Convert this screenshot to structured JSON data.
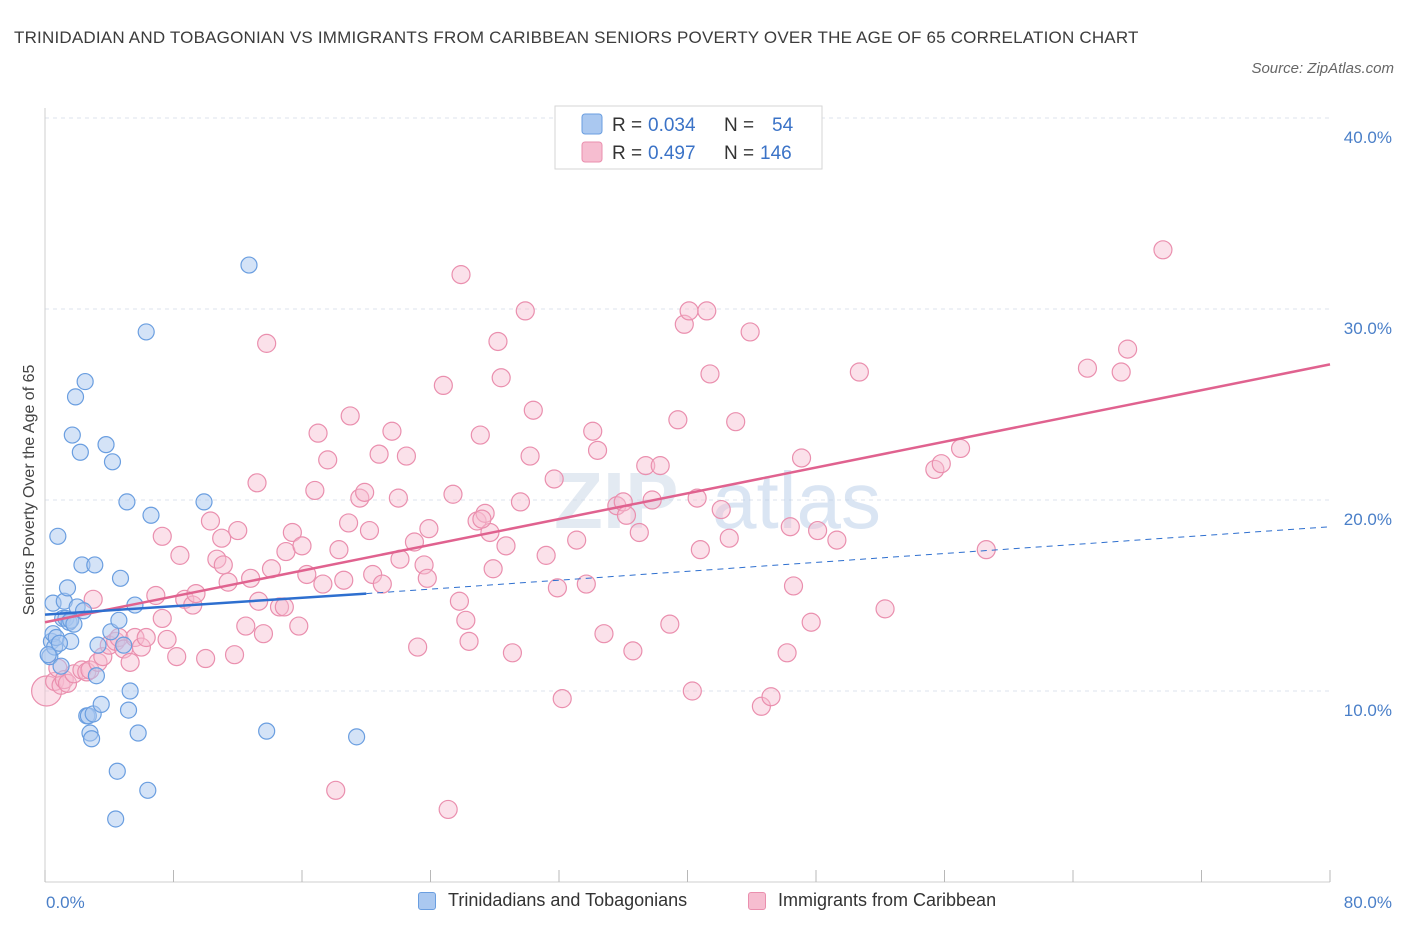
{
  "header": {
    "title": "TRINIDADIAN AND TOBAGONIAN VS IMMIGRANTS FROM CARIBBEAN SENIORS POVERTY OVER THE AGE OF 65 CORRELATION CHART",
    "source": "Source: ZipAtlas.com"
  },
  "watermark": {
    "zip": "ZIP",
    "atlas": "atlas"
  },
  "legend": {
    "items": [
      {
        "r_label": "R =",
        "r_value": "0.034",
        "n_label": "N =",
        "n_value": "54"
      },
      {
        "r_label": "R =",
        "r_value": "0.497",
        "n_label": "N =",
        "n_value": "146"
      }
    ]
  },
  "bottom_legend": {
    "series1": "Trinidadians and Tobagonians",
    "series2": "Immigrants from Caribbean"
  },
  "colors": {
    "blue_fill": "#aac8f0",
    "blue_stroke": "#6a9ee0",
    "blue_line": "#2e6fcf",
    "pink_fill": "#f6bdd0",
    "pink_stroke": "#ea8fae",
    "pink_line": "#e0628f",
    "grid": "#dde3ec",
    "tick_text": "#4a7fc8"
  },
  "chart_data": {
    "type": "scatter",
    "title": "TRINIDADIAN AND TOBAGONIAN VS IMMIGRANTS FROM CARIBBEAN SENIORS POVERTY OVER THE AGE OF 65 CORRELATION CHART",
    "xlabel": "",
    "ylabel": "Seniors Poverty Over the Age of 65",
    "xlim": [
      0,
      80
    ],
    "ylim": [
      0,
      40
    ],
    "x_tick_labels": [
      "0.0%",
      "80.0%"
    ],
    "y_ticks": [
      10,
      20,
      30,
      40
    ],
    "y_tick_labels": [
      "10.0%",
      "20.0%",
      "30.0%",
      "40.0%"
    ],
    "grid": true,
    "legend_position": "top-center",
    "series": [
      {
        "name": "Trinidadians and Tobagonians",
        "r": 0.034,
        "n": 54,
        "trend_solid": [
          [
            0,
            14.0
          ],
          [
            20,
            15.1
          ]
        ],
        "trend_dashed": [
          [
            20,
            15.1
          ],
          [
            80,
            18.6
          ]
        ],
        "points": [
          [
            0.3,
            11.8
          ],
          [
            0.4,
            12.6
          ],
          [
            0.5,
            13.0
          ],
          [
            0.5,
            14.6
          ],
          [
            0.6,
            12.3
          ],
          [
            0.7,
            12.8
          ],
          [
            0.8,
            18.1
          ],
          [
            1.0,
            11.3
          ],
          [
            1.1,
            13.8
          ],
          [
            1.2,
            14.7
          ],
          [
            1.3,
            13.8
          ],
          [
            1.4,
            15.4
          ],
          [
            1.5,
            13.6
          ],
          [
            1.6,
            12.6
          ],
          [
            1.6,
            13.7
          ],
          [
            1.7,
            23.4
          ],
          [
            1.9,
            25.4
          ],
          [
            2.0,
            14.4
          ],
          [
            2.2,
            22.5
          ],
          [
            2.3,
            16.6
          ],
          [
            2.5,
            26.2
          ],
          [
            2.6,
            8.7
          ],
          [
            2.7,
            8.7
          ],
          [
            2.8,
            7.8
          ],
          [
            2.9,
            7.5
          ],
          [
            3.0,
            8.8
          ],
          [
            3.1,
            16.6
          ],
          [
            3.2,
            10.8
          ],
          [
            3.3,
            12.4
          ],
          [
            3.5,
            9.3
          ],
          [
            3.8,
            22.9
          ],
          [
            4.1,
            13.1
          ],
          [
            4.2,
            22.0
          ],
          [
            4.4,
            3.3
          ],
          [
            4.5,
            5.8
          ],
          [
            4.6,
            13.7
          ],
          [
            4.7,
            15.9
          ],
          [
            4.9,
            12.4
          ],
          [
            5.1,
            19.9
          ],
          [
            5.2,
            9.0
          ],
          [
            5.3,
            10.0
          ],
          [
            5.6,
            14.5
          ],
          [
            5.8,
            7.8
          ],
          [
            6.3,
            28.8
          ],
          [
            6.4,
            4.8
          ],
          [
            6.6,
            19.2
          ],
          [
            9.9,
            19.9
          ],
          [
            12.7,
            32.3
          ],
          [
            13.8,
            7.9
          ],
          [
            19.4,
            7.6
          ],
          [
            0.2,
            11.9
          ],
          [
            0.9,
            12.5
          ],
          [
            1.8,
            13.5
          ],
          [
            2.4,
            14.2
          ]
        ]
      },
      {
        "name": "Immigrants from Caribbean",
        "r": 0.497,
        "n": 146,
        "trend_solid": [
          [
            0,
            13.6
          ],
          [
            80,
            27.1
          ]
        ],
        "points": [
          [
            0.1,
            10.0
          ],
          [
            0.6,
            10.5
          ],
          [
            0.8,
            11.2
          ],
          [
            1.0,
            10.3
          ],
          [
            1.2,
            10.6
          ],
          [
            1.4,
            10.4
          ],
          [
            1.8,
            10.9
          ],
          [
            2.3,
            11.1
          ],
          [
            2.6,
            11.0
          ],
          [
            2.8,
            11.1
          ],
          [
            3.0,
            14.8
          ],
          [
            3.3,
            11.5
          ],
          [
            3.6,
            11.8
          ],
          [
            4.0,
            12.4
          ],
          [
            4.4,
            12.6
          ],
          [
            4.6,
            12.8
          ],
          [
            4.9,
            12.2
          ],
          [
            5.3,
            11.5
          ],
          [
            5.6,
            12.8
          ],
          [
            6.0,
            12.3
          ],
          [
            6.3,
            12.8
          ],
          [
            6.9,
            15.0
          ],
          [
            7.3,
            13.8
          ],
          [
            7.3,
            18.1
          ],
          [
            7.6,
            12.7
          ],
          [
            8.2,
            11.8
          ],
          [
            8.4,
            17.1
          ],
          [
            8.7,
            14.8
          ],
          [
            9.2,
            14.5
          ],
          [
            9.4,
            15.1
          ],
          [
            10.0,
            11.7
          ],
          [
            10.3,
            18.9
          ],
          [
            10.7,
            16.9
          ],
          [
            11.0,
            18.0
          ],
          [
            11.1,
            16.6
          ],
          [
            11.4,
            15.7
          ],
          [
            11.8,
            11.9
          ],
          [
            12.0,
            18.4
          ],
          [
            12.5,
            13.4
          ],
          [
            12.8,
            15.9
          ],
          [
            13.2,
            20.9
          ],
          [
            13.3,
            14.7
          ],
          [
            13.6,
            13.0
          ],
          [
            13.8,
            28.2
          ],
          [
            14.1,
            16.4
          ],
          [
            14.6,
            14.4
          ],
          [
            15.0,
            17.3
          ],
          [
            15.4,
            18.3
          ],
          [
            15.8,
            13.4
          ],
          [
            16.0,
            17.6
          ],
          [
            16.3,
            16.1
          ],
          [
            16.8,
            20.5
          ],
          [
            17.0,
            23.5
          ],
          [
            17.3,
            15.6
          ],
          [
            17.6,
            22.1
          ],
          [
            18.1,
            4.8
          ],
          [
            18.3,
            17.4
          ],
          [
            18.6,
            15.8
          ],
          [
            18.9,
            18.8
          ],
          [
            19.0,
            24.4
          ],
          [
            19.6,
            20.1
          ],
          [
            19.9,
            20.4
          ],
          [
            20.2,
            18.4
          ],
          [
            20.4,
            16.1
          ],
          [
            20.8,
            22.4
          ],
          [
            21.0,
            15.6
          ],
          [
            21.6,
            23.6
          ],
          [
            22.0,
            20.1
          ],
          [
            22.1,
            16.9
          ],
          [
            22.5,
            22.3
          ],
          [
            23.0,
            17.8
          ],
          [
            23.2,
            12.3
          ],
          [
            23.6,
            16.6
          ],
          [
            23.8,
            15.9
          ],
          [
            23.9,
            18.5
          ],
          [
            24.8,
            26.0
          ],
          [
            25.1,
            3.8
          ],
          [
            25.4,
            20.3
          ],
          [
            25.8,
            14.7
          ],
          [
            25.9,
            31.8
          ],
          [
            26.2,
            13.7
          ],
          [
            26.4,
            12.6
          ],
          [
            26.9,
            18.9
          ],
          [
            27.1,
            23.4
          ],
          [
            27.4,
            19.3
          ],
          [
            27.7,
            18.3
          ],
          [
            27.9,
            16.4
          ],
          [
            28.2,
            28.3
          ],
          [
            28.4,
            26.4
          ],
          [
            28.7,
            17.6
          ],
          [
            29.1,
            12.0
          ],
          [
            29.6,
            19.9
          ],
          [
            29.9,
            29.9
          ],
          [
            30.2,
            22.3
          ],
          [
            30.4,
            24.7
          ],
          [
            31.2,
            17.1
          ],
          [
            31.7,
            21.1
          ],
          [
            31.9,
            15.4
          ],
          [
            32.2,
            9.6
          ],
          [
            33.1,
            17.9
          ],
          [
            33.7,
            15.6
          ],
          [
            34.1,
            23.6
          ],
          [
            34.4,
            22.6
          ],
          [
            34.8,
            13.0
          ],
          [
            35.6,
            19.7
          ],
          [
            36.0,
            19.9
          ],
          [
            36.2,
            19.2
          ],
          [
            36.6,
            12.1
          ],
          [
            37.0,
            18.3
          ],
          [
            37.4,
            21.8
          ],
          [
            37.8,
            20.0
          ],
          [
            38.3,
            21.8
          ],
          [
            38.9,
            13.5
          ],
          [
            39.4,
            24.2
          ],
          [
            39.8,
            29.2
          ],
          [
            40.1,
            29.9
          ],
          [
            40.3,
            10.0
          ],
          [
            40.8,
            17.4
          ],
          [
            41.2,
            29.9
          ],
          [
            41.4,
            26.6
          ],
          [
            42.1,
            19.5
          ],
          [
            42.6,
            18.0
          ],
          [
            43.0,
            24.1
          ],
          [
            43.9,
            28.8
          ],
          [
            44.6,
            9.2
          ],
          [
            45.2,
            9.7
          ],
          [
            46.2,
            12.0
          ],
          [
            46.4,
            18.6
          ],
          [
            46.6,
            15.5
          ],
          [
            47.1,
            22.2
          ],
          [
            47.7,
            13.6
          ],
          [
            48.1,
            18.4
          ],
          [
            49.3,
            17.9
          ],
          [
            50.7,
            26.7
          ],
          [
            52.3,
            14.3
          ],
          [
            55.4,
            21.6
          ],
          [
            55.8,
            21.9
          ],
          [
            57.0,
            22.7
          ],
          [
            58.6,
            17.4
          ],
          [
            64.9,
            26.9
          ],
          [
            67.0,
            26.7
          ],
          [
            69.6,
            33.1
          ],
          [
            67.4,
            27.9
          ],
          [
            40.6,
            20.1
          ],
          [
            27.2,
            19.0
          ],
          [
            14.9,
            14.4
          ]
        ]
      }
    ]
  }
}
